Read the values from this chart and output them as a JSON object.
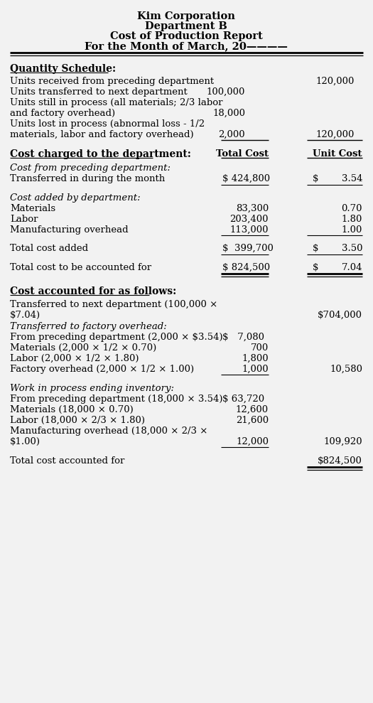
{
  "bg_color": "#f2f2f2",
  "text_color": "#000000",
  "title1": "Kim Corporation",
  "title2": "Department B",
  "title3": "Cost of Production Report",
  "title4": "For the Month of March, 20————"
}
